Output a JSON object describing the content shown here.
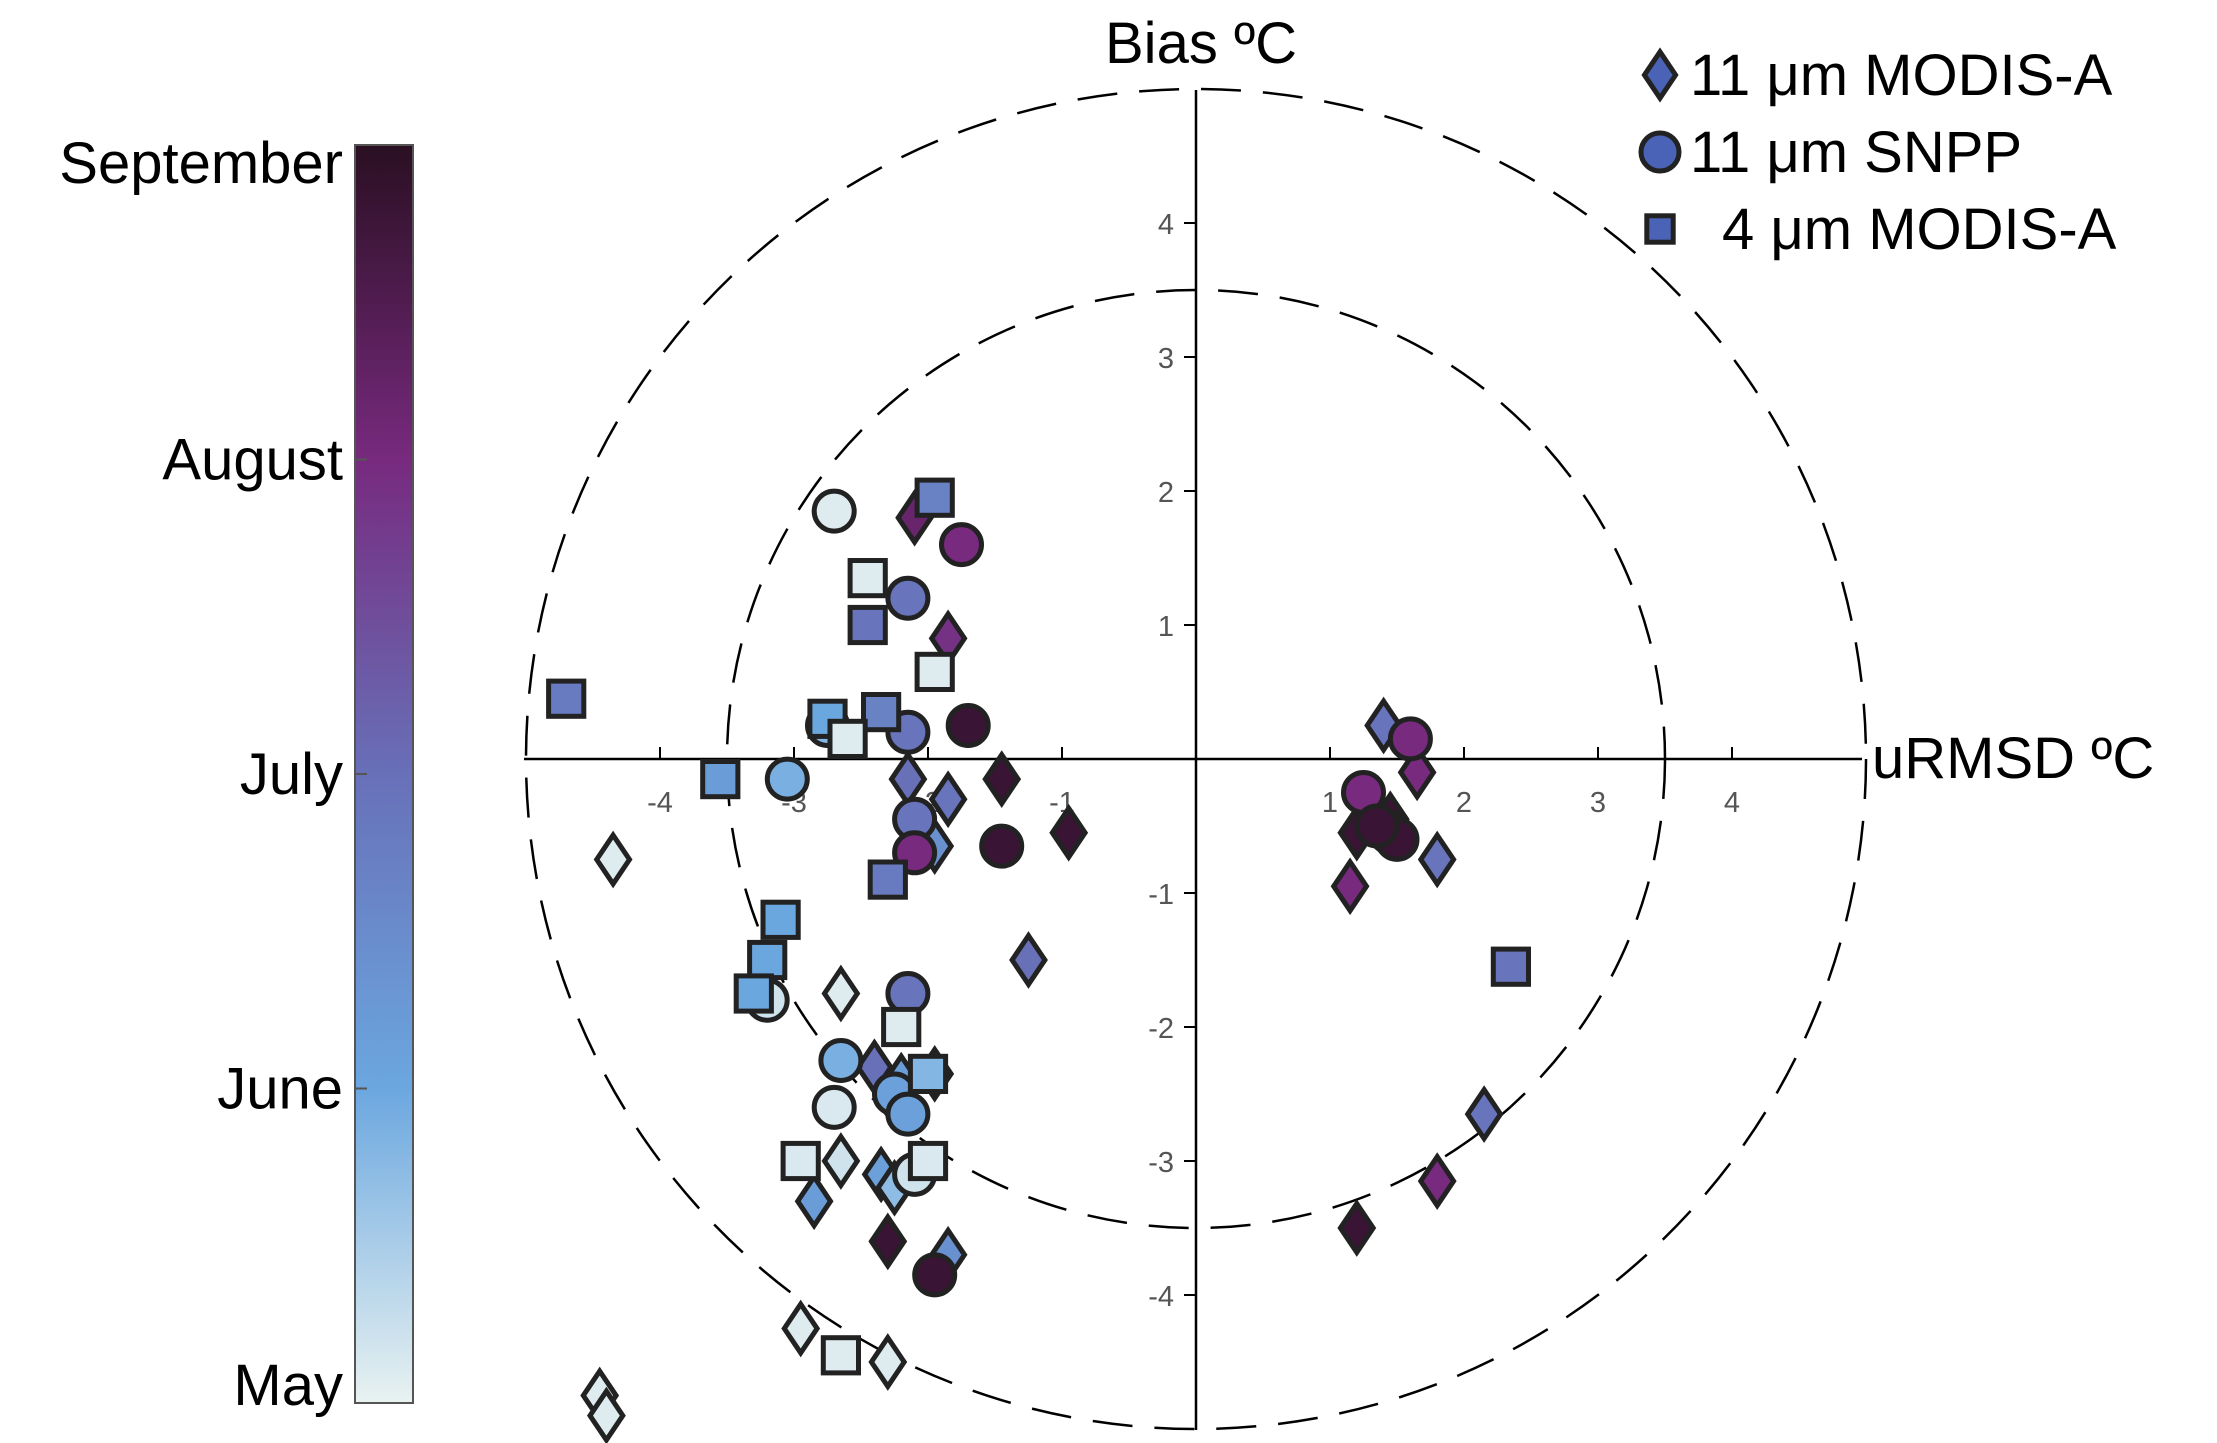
{
  "chart_data": {
    "type": "scatter",
    "title": "",
    "xlabel": "uRMSD ºC",
    "ylabel": "Bias ºC",
    "xlim": [
      -5,
      5
    ],
    "ylim": [
      -5,
      5
    ],
    "xticks": [
      -4,
      -3,
      -2,
      -1,
      1,
      2,
      3,
      4
    ],
    "yticks": [
      4,
      3,
      2,
      1,
      -1,
      -2,
      -3,
      -4
    ],
    "reference_circles": [
      3.5,
      5
    ],
    "grid": false,
    "legend_position": "top-right",
    "colorbar": {
      "labels": [
        "September",
        "August",
        "July",
        "June",
        "May"
      ],
      "colors": [
        "#2a0f22",
        "#772a7e",
        "#6870b8",
        "#6ba7df",
        "#e8f2f1"
      ]
    },
    "series": [
      {
        "name": "11 μm MODIS-A",
        "marker": "diamond",
        "legend_color": "#4a63b7",
        "points": [
          {
            "x": -2.1,
            "y": 1.8,
            "c": 0.8
          },
          {
            "x": -1.85,
            "y": 0.9,
            "c": 0.72
          },
          {
            "x": -2.15,
            "y": -0.15,
            "c": 0.5
          },
          {
            "x": -1.85,
            "y": -0.3,
            "c": 0.48
          },
          {
            "x": -1.95,
            "y": -0.65,
            "c": 0.35
          },
          {
            "x": -1.45,
            "y": -0.15,
            "c": 0.95
          },
          {
            "x": -0.95,
            "y": -0.55,
            "c": 0.95
          },
          {
            "x": -1.25,
            "y": -1.5,
            "c": 0.5
          },
          {
            "x": -4.35,
            "y": -0.75,
            "c": 0.02
          },
          {
            "x": -2.65,
            "y": -1.75,
            "c": 0.02
          },
          {
            "x": -2.4,
            "y": -2.3,
            "c": 0.5
          },
          {
            "x": -2.2,
            "y": -2.4,
            "c": 0.3
          },
          {
            "x": -1.95,
            "y": -2.35,
            "c": 0.92
          },
          {
            "x": -2.25,
            "y": -2.55,
            "c": 0.28
          },
          {
            "x": -2.65,
            "y": -3.0,
            "c": 0.05
          },
          {
            "x": -2.35,
            "y": -3.1,
            "c": 0.28
          },
          {
            "x": -2.25,
            "y": -3.2,
            "c": 0.18
          },
          {
            "x": -2.85,
            "y": -3.3,
            "c": 0.3
          },
          {
            "x": -2.3,
            "y": -3.6,
            "c": 0.95
          },
          {
            "x": -1.85,
            "y": -3.7,
            "c": 0.35
          },
          {
            "x": -2.95,
            "y": -4.25,
            "c": 0.02
          },
          {
            "x": -2.3,
            "y": -4.5,
            "c": 0.02
          },
          {
            "x": -4.45,
            "y": -4.75,
            "c": 0.02
          },
          {
            "x": -4.4,
            "y": -4.9,
            "c": 0.02
          },
          {
            "x": 1.4,
            "y": 0.25,
            "c": 0.48
          },
          {
            "x": 1.65,
            "y": -0.1,
            "c": 0.75
          },
          {
            "x": 1.8,
            "y": -0.75,
            "c": 0.48
          },
          {
            "x": 1.15,
            "y": -0.95,
            "c": 0.75
          },
          {
            "x": 1.2,
            "y": -0.55,
            "c": 0.95
          },
          {
            "x": 1.45,
            "y": -0.45,
            "c": 0.95
          },
          {
            "x": 2.15,
            "y": -2.65,
            "c": 0.48
          },
          {
            "x": 1.8,
            "y": -3.15,
            "c": 0.75
          },
          {
            "x": 1.2,
            "y": -3.5,
            "c": 0.95
          }
        ]
      },
      {
        "name": "11 μm SNPP",
        "marker": "circle",
        "legend_color": "#4a63b7",
        "points": [
          {
            "x": -2.7,
            "y": 1.85,
            "c": 0.02
          },
          {
            "x": -1.75,
            "y": 1.6,
            "c": 0.75
          },
          {
            "x": -2.15,
            "y": 1.2,
            "c": 0.48
          },
          {
            "x": -2.75,
            "y": 0.25,
            "c": 0.2
          },
          {
            "x": -2.15,
            "y": 0.2,
            "c": 0.48
          },
          {
            "x": -1.7,
            "y": 0.25,
            "c": 0.95
          },
          {
            "x": -3.05,
            "y": -0.15,
            "c": 0.22
          },
          {
            "x": -2.1,
            "y": -0.45,
            "c": 0.48
          },
          {
            "x": -2.1,
            "y": -0.7,
            "c": 0.75
          },
          {
            "x": -1.45,
            "y": -0.65,
            "c": 0.95
          },
          {
            "x": -2.15,
            "y": -1.75,
            "c": 0.48
          },
          {
            "x": -3.2,
            "y": -1.8,
            "c": 0.05
          },
          {
            "x": -2.65,
            "y": -2.25,
            "c": 0.22
          },
          {
            "x": -2.25,
            "y": -2.5,
            "c": 0.28
          },
          {
            "x": -2.7,
            "y": -2.6,
            "c": 0.03
          },
          {
            "x": -2.15,
            "y": -2.65,
            "c": 0.28
          },
          {
            "x": -2.1,
            "y": -3.1,
            "c": 0.05
          },
          {
            "x": -1.95,
            "y": -3.85,
            "c": 0.95
          },
          {
            "x": 1.6,
            "y": 0.15,
            "c": 0.75
          },
          {
            "x": 1.25,
            "y": -0.25,
            "c": 0.75
          },
          {
            "x": 1.45,
            "y": -0.55,
            "c": 0.95
          },
          {
            "x": 1.5,
            "y": -0.6,
            "c": 0.95
          },
          {
            "x": 1.35,
            "y": -0.5,
            "c": 0.95
          }
        ]
      },
      {
        "name": "4 μm MODIS-A",
        "marker": "square",
        "legend_color": "#4a63b7",
        "points": [
          {
            "x": -1.95,
            "y": 1.95,
            "c": 0.42
          },
          {
            "x": -2.45,
            "y": 1.35,
            "c": 0.02
          },
          {
            "x": -2.45,
            "y": 1.0,
            "c": 0.48
          },
          {
            "x": -1.95,
            "y": 0.65,
            "c": 0.02
          },
          {
            "x": -4.7,
            "y": 0.45,
            "c": 0.45
          },
          {
            "x": -2.35,
            "y": 0.35,
            "c": 0.42
          },
          {
            "x": -2.75,
            "y": 0.3,
            "c": 0.25
          },
          {
            "x": -2.6,
            "y": 0.15,
            "c": 0.02
          },
          {
            "x": -3.55,
            "y": -0.15,
            "c": 0.3
          },
          {
            "x": -2.3,
            "y": -0.9,
            "c": 0.45
          },
          {
            "x": -3.1,
            "y": -1.2,
            "c": 0.25
          },
          {
            "x": -3.2,
            "y": -1.5,
            "c": 0.25
          },
          {
            "x": -3.3,
            "y": -1.75,
            "c": 0.25
          },
          {
            "x": -2.2,
            "y": -2.0,
            "c": 0.02
          },
          {
            "x": -2.0,
            "y": -2.35,
            "c": 0.2
          },
          {
            "x": -2.95,
            "y": -3.0,
            "c": 0.03
          },
          {
            "x": -2.0,
            "y": -3.0,
            "c": 0.03
          },
          {
            "x": -2.65,
            "y": -4.45,
            "c": 0.02
          },
          {
            "x": 2.35,
            "y": -1.55,
            "c": 0.48
          }
        ]
      }
    ]
  }
}
